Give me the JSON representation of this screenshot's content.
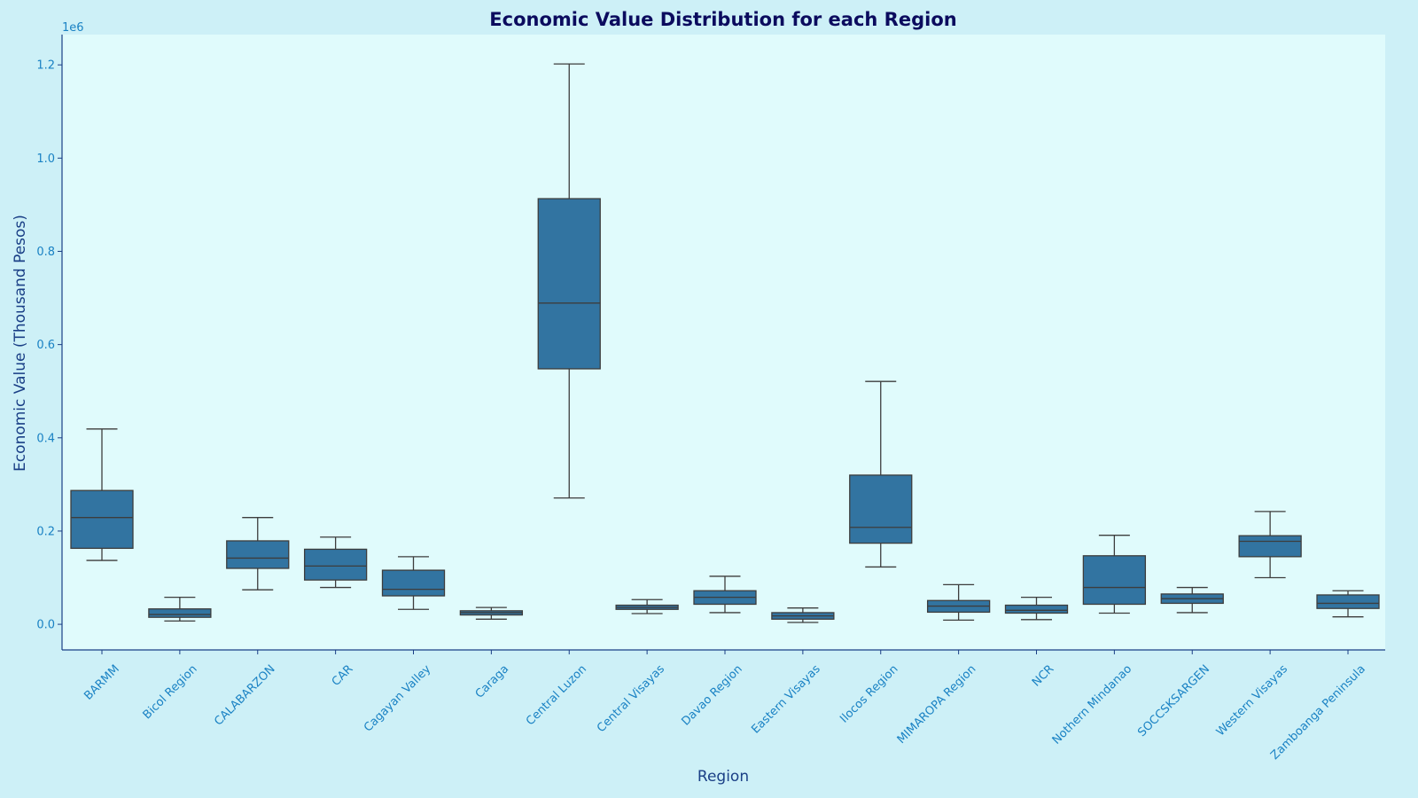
{
  "chart_data": {
    "type": "box",
    "title": "Economic Value Distribution for each Region",
    "xlabel": "Region",
    "ylabel": "Economic Value (Thousand Pesos)",
    "y_offset_label": "1e6",
    "ylim": [
      -0.055,
      1.265
    ],
    "yticks": [
      0.0,
      0.2,
      0.4,
      0.6,
      0.8,
      1.0,
      1.2
    ],
    "ytick_labels": [
      "0.0",
      "0.2",
      "0.4",
      "0.6",
      "0.8",
      "1.0",
      "1.2"
    ],
    "grid": false,
    "colors": {
      "background": "#cdf0f7",
      "plot_background": "#e0fbfc",
      "box_fill": "#3274a1",
      "box_edge": "#3d3d3d",
      "axis": "#1a3f86",
      "tick_text": "#1a82c4",
      "title": "#0b0b5e"
    },
    "categories": [
      "BARMM",
      "Bicol Region",
      "CALABARZON",
      "CAR",
      "Cagayan Valley",
      "Caraga",
      "Central Luzon",
      "Central Visayas",
      "Davao Region",
      "Eastern Visayas",
      "Ilocos Region",
      "MIMAROPA Region",
      "NCR",
      "Nothern Mindanao",
      "SOCCSKSARGEN",
      "Western Visayas",
      "Zamboanga Peninsula"
    ],
    "boxes": [
      {
        "whisker_low": 0.137,
        "q1": 0.163,
        "median": 0.229,
        "q3": 0.287,
        "whisker_high": 0.419
      },
      {
        "whisker_low": 0.007,
        "q1": 0.015,
        "median": 0.021,
        "q3": 0.033,
        "whisker_high": 0.058
      },
      {
        "whisker_low": 0.074,
        "q1": 0.12,
        "median": 0.142,
        "q3": 0.179,
        "whisker_high": 0.229
      },
      {
        "whisker_low": 0.079,
        "q1": 0.095,
        "median": 0.125,
        "q3": 0.161,
        "whisker_high": 0.187
      },
      {
        "whisker_low": 0.032,
        "q1": 0.061,
        "median": 0.075,
        "q3": 0.116,
        "whisker_high": 0.145
      },
      {
        "whisker_low": 0.011,
        "q1": 0.02,
        "median": 0.025,
        "q3": 0.029,
        "whisker_high": 0.036
      },
      {
        "whisker_low": 0.271,
        "q1": 0.548,
        "median": 0.689,
        "q3": 0.913,
        "whisker_high": 1.202
      },
      {
        "whisker_low": 0.023,
        "q1": 0.032,
        "median": 0.036,
        "q3": 0.041,
        "whisker_high": 0.053
      },
      {
        "whisker_low": 0.025,
        "q1": 0.043,
        "median": 0.058,
        "q3": 0.072,
        "whisker_high": 0.103
      },
      {
        "whisker_low": 0.004,
        "q1": 0.011,
        "median": 0.018,
        "q3": 0.025,
        "whisker_high": 0.035
      },
      {
        "whisker_low": 0.123,
        "q1": 0.174,
        "median": 0.208,
        "q3": 0.32,
        "whisker_high": 0.521
      },
      {
        "whisker_low": 0.009,
        "q1": 0.026,
        "median": 0.039,
        "q3": 0.051,
        "whisker_high": 0.085
      },
      {
        "whisker_low": 0.01,
        "q1": 0.024,
        "median": 0.03,
        "q3": 0.041,
        "whisker_high": 0.058
      },
      {
        "whisker_low": 0.024,
        "q1": 0.043,
        "median": 0.079,
        "q3": 0.147,
        "whisker_high": 0.191
      },
      {
        "whisker_low": 0.025,
        "q1": 0.045,
        "median": 0.055,
        "q3": 0.065,
        "whisker_high": 0.079
      },
      {
        "whisker_low": 0.1,
        "q1": 0.145,
        "median": 0.178,
        "q3": 0.19,
        "whisker_high": 0.242
      },
      {
        "whisker_low": 0.016,
        "q1": 0.034,
        "median": 0.045,
        "q3": 0.063,
        "whisker_high": 0.072
      }
    ]
  }
}
